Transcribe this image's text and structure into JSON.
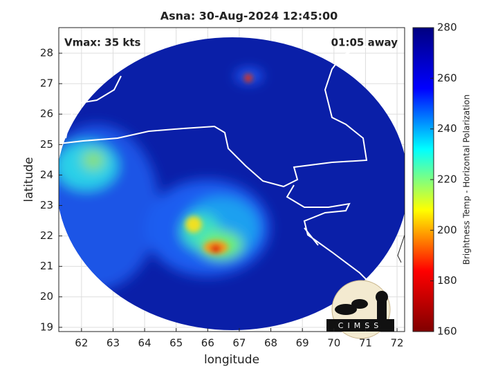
{
  "chart_data": {
    "type": "map",
    "title": "Asna: 30-Aug-2024 12:45:00",
    "annotations": [
      "Vmax: 35 kts",
      "01:05 away"
    ],
    "xlabel": "longitude",
    "ylabel": "latitude",
    "xlim": [
      61.28,
      72.24
    ],
    "ylim": [
      18.86,
      28.84
    ],
    "xticks": [
      62,
      63,
      64,
      65,
      66,
      67,
      68,
      69,
      70,
      71,
      72
    ],
    "yticks": [
      19,
      20,
      21,
      22,
      23,
      24,
      25,
      26,
      27,
      28
    ],
    "grid": true,
    "colorbar": {
      "label": "Brightness Temp - Horizontal Polarization",
      "clim": [
        160,
        280
      ],
      "ticks": [
        160,
        180,
        200,
        220,
        240,
        260,
        280
      ],
      "colormap": [
        "#800000",
        "#ff0000",
        "#ffff00",
        "#00ffff",
        "#0000ff",
        "#000080"
      ]
    },
    "logo": "CIMSS"
  }
}
